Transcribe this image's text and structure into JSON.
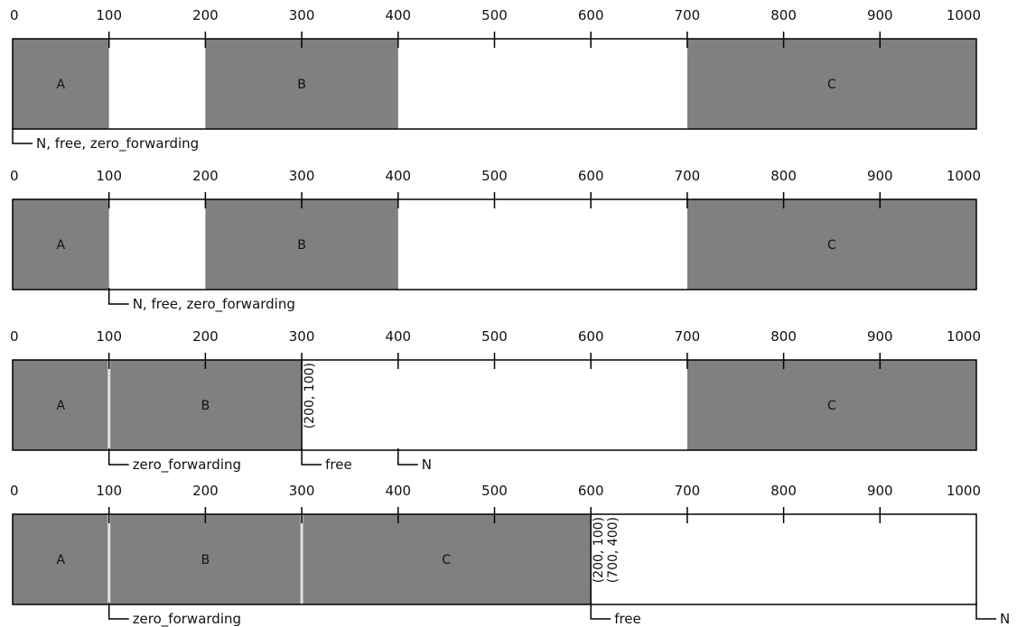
{
  "colors": {
    "block_fill": "#808080",
    "free_fill": "#ffffff",
    "outline": "#000000",
    "separator": "#e0e0e0",
    "text": "#111111"
  },
  "scale": {
    "min": 0,
    "max": 1000,
    "step": 100,
    "labels": [
      "0",
      "100",
      "200",
      "300",
      "400",
      "500",
      "600",
      "700",
      "800",
      "900",
      "1000"
    ]
  },
  "panels": [
    {
      "blocks": [
        {
          "label": "A",
          "start": 0,
          "end": 100
        },
        {
          "label": "B",
          "start": 200,
          "end": 400
        },
        {
          "label": "C",
          "start": 700,
          "end": 1000
        }
      ],
      "separators": [],
      "pointers": [
        {
          "label": "N, free, zero_forwarding",
          "at": 0
        }
      ],
      "annotations": []
    },
    {
      "blocks": [
        {
          "label": "A",
          "start": 0,
          "end": 100
        },
        {
          "label": "B",
          "start": 200,
          "end": 400
        },
        {
          "label": "C",
          "start": 700,
          "end": 1000
        }
      ],
      "separators": [],
      "pointers": [
        {
          "label": "N, free, zero_forwarding",
          "at": 100
        }
      ],
      "annotations": []
    },
    {
      "blocks": [
        {
          "label": "A",
          "start": 0,
          "end": 100
        },
        {
          "label": "B",
          "start": 100,
          "end": 300
        },
        {
          "label": "C",
          "start": 700,
          "end": 1000
        }
      ],
      "separators": [
        100
      ],
      "pointers": [
        {
          "label": "zero_forwarding",
          "at": 100
        },
        {
          "label": "free",
          "at": 300
        },
        {
          "label": "N",
          "at": 400
        }
      ],
      "annotations": [
        {
          "at": 300,
          "lines": [
            "(200, 100)"
          ]
        }
      ]
    },
    {
      "blocks": [
        {
          "label": "A",
          "start": 0,
          "end": 100
        },
        {
          "label": "B",
          "start": 100,
          "end": 300
        },
        {
          "label": "C",
          "start": 300,
          "end": 600
        }
      ],
      "separators": [
        100,
        300
      ],
      "pointers": [
        {
          "label": "zero_forwarding",
          "at": 100
        },
        {
          "label": "free",
          "at": 600
        },
        {
          "label": "N",
          "at": 1000
        }
      ],
      "annotations": [
        {
          "at": 600,
          "lines": [
            "(200, 100)",
            "(700, 400)"
          ]
        }
      ]
    }
  ]
}
